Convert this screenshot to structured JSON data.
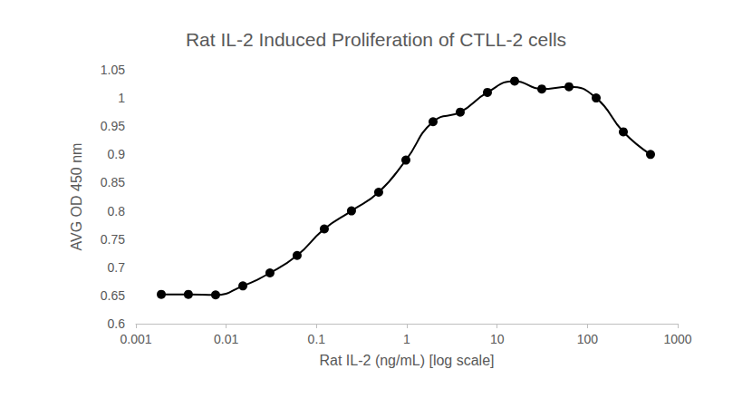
{
  "chart_data": {
    "type": "line",
    "title": "Rat IL-2 Induced Proliferation of CTLL-2 cells",
    "x_label": "Rat IL-2 (ng/mL) [log scale]",
    "y_label": "AVG OD 450 nm",
    "x": [
      0.00191,
      0.00381,
      0.00763,
      0.0153,
      0.0305,
      0.061,
      0.122,
      0.244,
      0.488,
      0.977,
      1.953,
      3.906,
      7.8125,
      15.625,
      31.25,
      62.5,
      125,
      250,
      500
    ],
    "values": [
      0.652,
      0.652,
      0.651,
      0.667,
      0.69,
      0.721,
      0.768,
      0.8,
      0.833,
      0.89,
      0.958,
      0.975,
      1.01,
      1.03,
      1.016,
      1.02,
      1.0,
      0.94,
      0.9
    ],
    "color": "#000000",
    "marker": "circle",
    "line_style": "solid",
    "log": "x",
    "grid": false,
    "xlim": [
      0.001,
      1000
    ],
    "xticks": [
      0.001,
      0.01,
      0.1,
      1,
      10,
      100,
      1000
    ],
    "ylim": [
      0.6,
      1.05
    ],
    "yticks": [
      0.6,
      0.65,
      0.7,
      0.75,
      0.8,
      0.85,
      0.9,
      0.95,
      1,
      1.05
    ]
  }
}
